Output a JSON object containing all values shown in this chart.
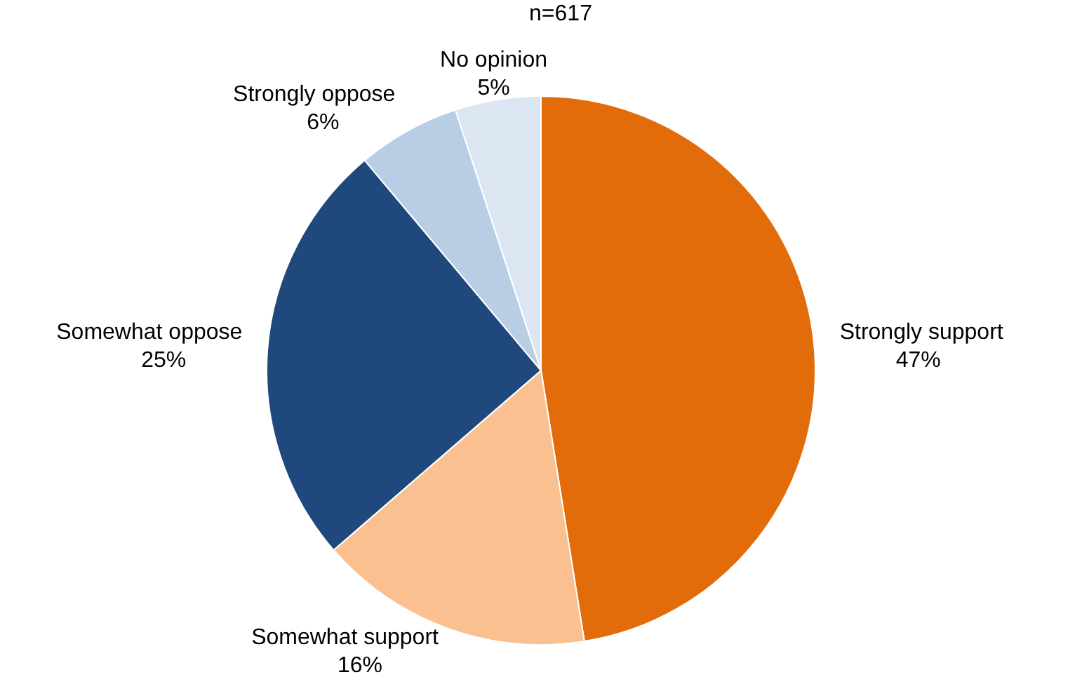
{
  "chart_data": {
    "type": "pie",
    "title": "n=617",
    "categories": [
      "Strongly support",
      "Somewhat support",
      "Somewhat oppose",
      "Strongly oppose",
      "No opinion"
    ],
    "values": [
      47,
      16,
      25,
      6,
      5
    ],
    "colors": [
      "#e36c0a",
      "#fac090",
      "#1f497d",
      "#b9cde5",
      "#dce6f2"
    ],
    "value_labels": [
      "47%",
      "16%",
      "25%",
      "6%",
      "5%"
    ],
    "legend": false
  }
}
